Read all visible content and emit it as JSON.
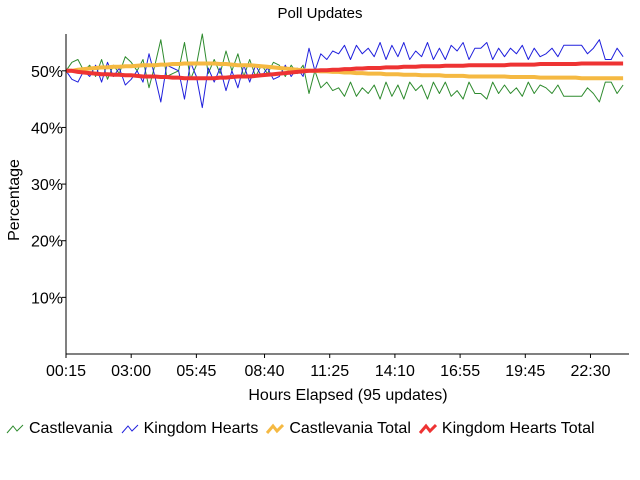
{
  "chart_data": {
    "type": "line",
    "title": "Poll Updates",
    "xlabel": "Hours Elapsed (95 updates)",
    "ylabel": "Percentage",
    "x_tick_labels": [
      "00:15",
      "03:00",
      "05:45",
      "08:40",
      "11:25",
      "14:10",
      "16:55",
      "19:45",
      "22:30"
    ],
    "y_tick_labels": [
      "10%",
      "20%",
      "30%",
      "40%",
      "50%"
    ],
    "y_ticks": [
      10,
      20,
      30,
      40,
      50
    ],
    "ylim": [
      0,
      56.5
    ],
    "xlim": [
      0,
      95
    ],
    "x_tick_indices": [
      0,
      11,
      22,
      33.5,
      44.5,
      55.5,
      66.5,
      77.5,
      88.5
    ],
    "grid": false,
    "legend_position": "bottom",
    "series": [
      {
        "name": "Castlevania",
        "color": "#2e8b2e",
        "values": [
          50,
          51.5,
          52,
          50,
          51,
          49,
          52,
          48.5,
          51,
          49.5,
          52.5,
          51.5,
          50,
          52,
          47,
          51,
          55.5,
          49,
          49.5,
          50,
          55,
          48.5,
          51,
          56.5,
          49.5,
          52,
          49.5,
          53.5,
          50,
          53,
          49,
          52,
          49,
          51,
          49.5,
          51.5,
          51,
          49,
          51,
          49.5,
          51,
          46,
          50,
          47,
          48,
          46.5,
          47,
          45.5,
          48,
          45.5,
          47,
          46,
          47.5,
          45,
          48,
          45.5,
          47.5,
          45,
          48,
          46.5,
          47.5,
          45,
          48,
          46,
          48,
          45.5,
          46.5,
          45,
          48,
          46,
          46,
          45,
          48,
          46,
          47.5,
          46,
          47,
          45.5,
          48,
          46,
          47.5,
          47,
          46,
          47.5,
          45.5,
          45.5,
          45.5,
          45.5,
          47,
          46,
          44.5,
          48,
          48,
          46,
          47.5
        ]
      },
      {
        "name": "Kingdom Hearts",
        "color": "#2020dd",
        "values": [
          50,
          48.5,
          48,
          50,
          49,
          51,
          48,
          51.5,
          49,
          50.5,
          47.5,
          48.5,
          50,
          48,
          53,
          49,
          44.5,
          51,
          50.5,
          50,
          45,
          51.5,
          49,
          43.5,
          50.5,
          48,
          50.5,
          46.5,
          50,
          47,
          51,
          48,
          51,
          49,
          50.5,
          48.5,
          49,
          51,
          49,
          50.5,
          49,
          54,
          50,
          53,
          52,
          53.5,
          53,
          54.5,
          52,
          54.5,
          53,
          54,
          52.5,
          55,
          52,
          54.5,
          52.5,
          55,
          52,
          53.5,
          52.5,
          55,
          52,
          54,
          52,
          54.5,
          53.5,
          55,
          52,
          54,
          54,
          55,
          52,
          54,
          52.5,
          54,
          53,
          54.5,
          52,
          54,
          52.5,
          53,
          54,
          52.5,
          54.5,
          54.5,
          54.5,
          54.5,
          53,
          54,
          55.5,
          52,
          52,
          54,
          52.5
        ]
      },
      {
        "name": "Castlevania Total",
        "color": "#f5b942",
        "values": [
          50,
          50,
          50.2,
          50.3,
          50.4,
          50.5,
          50.6,
          50.6,
          50.7,
          50.7,
          50.8,
          50.8,
          50.9,
          51,
          51,
          51,
          51.1,
          51.1,
          51.2,
          51.2,
          51.3,
          51.3,
          51.3,
          51.3,
          51.3,
          51.3,
          51.2,
          51.2,
          51.1,
          51,
          51,
          51,
          50.9,
          50.8,
          50.7,
          50.6,
          50.5,
          50.4,
          50.3,
          50.2,
          50.1,
          50,
          50,
          49.9,
          49.9,
          49.8,
          49.8,
          49.7,
          49.7,
          49.6,
          49.6,
          49.5,
          49.5,
          49.5,
          49.4,
          49.4,
          49.4,
          49.3,
          49.3,
          49.3,
          49.2,
          49.2,
          49.2,
          49.2,
          49.1,
          49.1,
          49.1,
          49.1,
          49,
          49,
          49,
          49,
          49,
          49,
          49,
          48.9,
          48.9,
          48.9,
          48.9,
          48.9,
          48.8,
          48.8,
          48.8,
          48.8,
          48.8,
          48.8,
          48.8,
          48.7,
          48.7,
          48.7,
          48.7,
          48.7,
          48.7,
          48.7,
          48.7
        ]
      },
      {
        "name": "Kingdom Hearts Total",
        "color": "#ee3333",
        "values": [
          50,
          50,
          49.8,
          49.7,
          49.6,
          49.5,
          49.4,
          49.4,
          49.3,
          49.3,
          49.2,
          49.2,
          49.1,
          49,
          49,
          49,
          48.9,
          48.9,
          48.8,
          48.8,
          48.7,
          48.7,
          48.7,
          48.7,
          48.7,
          48.7,
          48.8,
          48.8,
          48.9,
          49,
          49,
          49,
          49.1,
          49.2,
          49.3,
          49.4,
          49.5,
          49.6,
          49.7,
          49.8,
          49.9,
          50,
          50,
          50.1,
          50.1,
          50.2,
          50.2,
          50.3,
          50.3,
          50.4,
          50.4,
          50.5,
          50.5,
          50.5,
          50.6,
          50.6,
          50.6,
          50.7,
          50.7,
          50.7,
          50.8,
          50.8,
          50.8,
          50.8,
          50.9,
          50.9,
          50.9,
          50.9,
          51,
          51,
          51,
          51,
          51,
          51,
          51,
          51.1,
          51.1,
          51.1,
          51.1,
          51.1,
          51.2,
          51.2,
          51.2,
          51.2,
          51.2,
          51.2,
          51.2,
          51.3,
          51.3,
          51.3,
          51.3,
          51.3,
          51.3,
          51.3,
          51.3
        ]
      }
    ]
  }
}
